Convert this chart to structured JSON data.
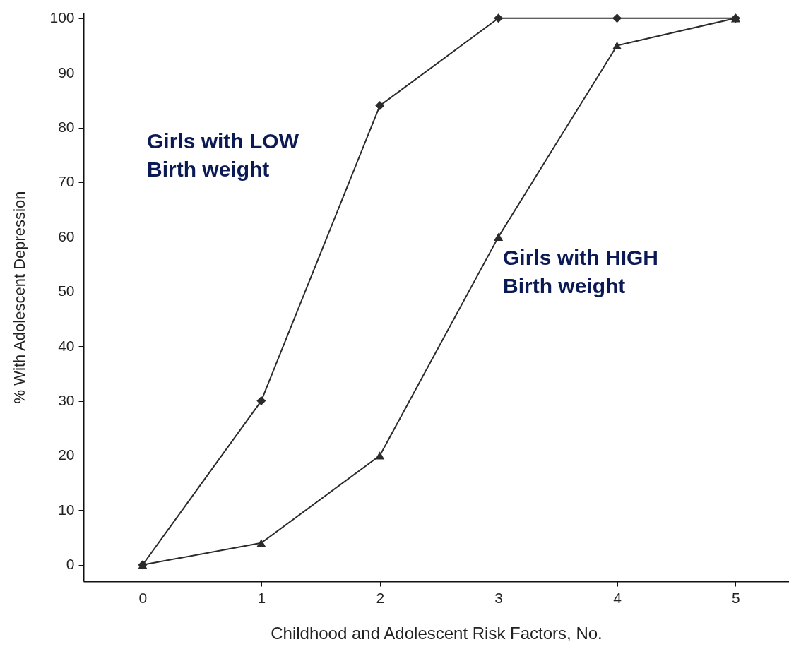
{
  "chart_data": {
    "type": "line",
    "xlabel": "Childhood and Adolescent Risk Factors, No.",
    "ylabel": "% With Adolescent Depression",
    "x": [
      0,
      1,
      2,
      3,
      4,
      5
    ],
    "series": [
      {
        "name": "Girls with LOW Birth weight",
        "color": "#2b2b2b",
        "marker": "diamond",
        "values": [
          0,
          30,
          84,
          100,
          100,
          100
        ]
      },
      {
        "name": "Girls with HIGH Birth weight",
        "color": "#2b2b2b",
        "marker": "triangle",
        "values": [
          0,
          4,
          20,
          60,
          95,
          100
        ]
      }
    ],
    "xlim": [
      -0.5,
      5.45
    ],
    "xticks": [
      0,
      1,
      2,
      3,
      4,
      5
    ],
    "ylim": [
      -3,
      101
    ],
    "yticks": [
      0,
      10,
      20,
      30,
      40,
      50,
      60,
      70,
      80,
      90,
      100
    ],
    "grid": false,
    "legend": false,
    "line_style": "solid"
  }
}
